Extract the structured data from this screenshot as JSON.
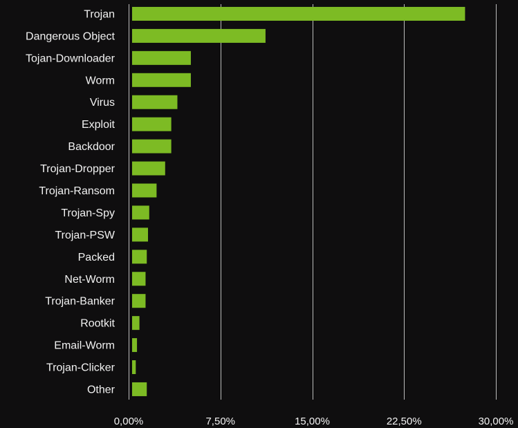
{
  "chart_data": {
    "type": "bar",
    "orientation": "horizontal",
    "categories": [
      "Trojan",
      "Dangerous Object",
      "Tojan-Downloader",
      "Worm",
      "Virus",
      "Exploit",
      "Backdoor",
      "Trojan-Dropper",
      "Trojan-Ransom",
      "Trojan-Spy",
      "Trojan-PSW",
      "Packed",
      "Net-Worm",
      "Trojan-Banker",
      "Rootkit",
      "Email-Worm",
      "Trojan-Clicker",
      "Other"
    ],
    "values": [
      27.2,
      10.9,
      4.8,
      4.8,
      3.7,
      3.2,
      3.2,
      2.7,
      2.0,
      1.4,
      1.3,
      1.2,
      1.1,
      1.1,
      0.6,
      0.4,
      0.3,
      1.2
    ],
    "unit": "%",
    "xlim": [
      0,
      30
    ],
    "x_ticks": [
      0,
      7.5,
      15,
      22.5,
      30
    ],
    "x_tick_labels": [
      "0,00%",
      "7,50%",
      "15,00%",
      "22,50%",
      "30,00%"
    ],
    "grid": "vertical",
    "legend": "none",
    "title": "",
    "xlabel": "",
    "ylabel": "",
    "colors": {
      "background": "#0f0e0f",
      "bar": "#7dbb24",
      "text": "#f2f2f2",
      "grid": "#bdbdbd"
    }
  }
}
